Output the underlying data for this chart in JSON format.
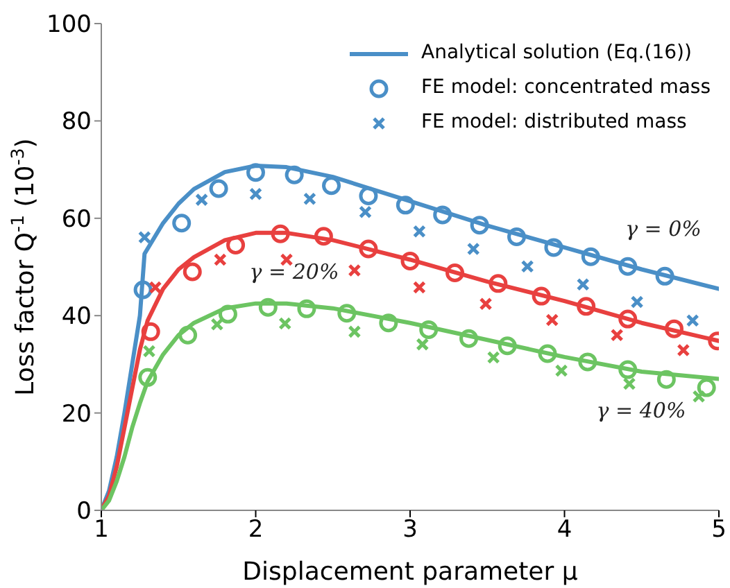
{
  "chart_data": {
    "type": "line",
    "xlabel": "Displacement parameter  μ",
    "ylabel": "Loss factor  Q$^{-1}$  (10$^{-3}$)",
    "xlim": [
      1,
      5
    ],
    "xticks": [
      1,
      2,
      3,
      4,
      5
    ],
    "ylim": [
      0,
      100
    ],
    "yticks": [
      0,
      20,
      40,
      60,
      80,
      100
    ],
    "grid": false,
    "legend": "top right",
    "series": [
      {
        "name": "Analytical solution (Eq.(16))",
        "color": "#4a8fc7",
        "marker": "none",
        "x": [
          1,
          1.05,
          1.1,
          1.15,
          1.2,
          1.25,
          1.28,
          1.4,
          1.5,
          1.6,
          1.8,
          2.0,
          2.2,
          2.5,
          3.0,
          3.5,
          4.0,
          4.5,
          5.0
        ],
        "values": [
          0,
          4,
          11,
          20,
          30,
          40,
          52.7,
          59,
          63,
          66,
          69.5,
          70.8,
          70.5,
          68.5,
          63.5,
          58.5,
          54,
          49.5,
          45.5
        ]
      },
      {
        "color": "#e8403f",
        "marker": "none",
        "x": [
          1,
          1.05,
          1.1,
          1.15,
          1.2,
          1.25,
          1.3,
          1.4,
          1.5,
          1.6,
          1.8,
          2.0,
          2.2,
          2.5,
          3.0,
          3.5,
          4.0,
          4.5,
          5.0
        ],
        "values": [
          0,
          3,
          9,
          17,
          25,
          33,
          39,
          45.5,
          49.5,
          52,
          55.5,
          57,
          57,
          55.5,
          51.5,
          47,
          43,
          38.5,
          34.8
        ]
      },
      {
        "color": "#6cc462",
        "marker": "none",
        "x": [
          1,
          1.05,
          1.1,
          1.15,
          1.2,
          1.25,
          1.3,
          1.4,
          1.5,
          1.6,
          1.8,
          2.0,
          2.2,
          2.5,
          3.0,
          3.5,
          4.0,
          4.5,
          5.0
        ],
        "values": [
          0,
          2,
          6,
          11,
          17,
          22,
          26.5,
          32,
          36,
          38.5,
          41.5,
          42.5,
          42.5,
          41.5,
          38.5,
          35,
          31.5,
          28.5,
          27
        ]
      },
      {
        "type": "scatter",
        "name": "FE model: concentrated mass",
        "color": "#4a8fc7",
        "marker": "circle",
        "x": [
          1.27,
          1.52,
          1.76,
          2.0,
          2.25,
          2.49,
          2.73,
          2.97,
          3.21,
          3.45,
          3.69,
          3.93,
          4.17,
          4.41,
          4.65
        ],
        "values": [
          45.3,
          59.0,
          66.1,
          69.4,
          68.9,
          66.7,
          64.6,
          62.7,
          60.7,
          58.6,
          56.2,
          54.0,
          52.1,
          50.1,
          48.1
        ]
      },
      {
        "type": "scatter",
        "color": "#e8403f",
        "marker": "circle",
        "x": [
          1.32,
          1.59,
          1.87,
          2.16,
          2.44,
          2.73,
          3.0,
          3.29,
          3.57,
          3.85,
          4.14,
          4.41,
          4.71,
          4.99
        ],
        "values": [
          36.7,
          49.0,
          54.5,
          56.8,
          56.3,
          53.7,
          51.2,
          48.8,
          46.6,
          44.0,
          41.9,
          39.3,
          37.3,
          34.8
        ]
      },
      {
        "type": "scatter",
        "color": "#6cc462",
        "marker": "circle",
        "x": [
          1.3,
          1.56,
          1.82,
          2.08,
          2.33,
          2.59,
          2.86,
          3.12,
          3.38,
          3.63,
          3.89,
          4.15,
          4.41,
          4.66,
          4.92
        ],
        "values": [
          27.3,
          36.0,
          40.3,
          41.7,
          41.4,
          40.5,
          38.5,
          37.1,
          35.3,
          33.8,
          32.2,
          30.5,
          28.9,
          26.9,
          25.2
        ]
      },
      {
        "type": "scatter",
        "name": "FE model: distributed mass",
        "color": "#4a8fc7",
        "marker": "cross",
        "x": [
          1.28,
          1.65,
          2.0,
          2.35,
          2.71,
          3.06,
          3.41,
          3.76,
          4.12,
          4.47,
          4.83
        ],
        "values": [
          56.1,
          63.8,
          65.0,
          64.0,
          61.3,
          57.3,
          53.7,
          50.1,
          46.4,
          42.8,
          39.0
        ]
      },
      {
        "type": "scatter",
        "color": "#e8403f",
        "marker": "cross",
        "x": [
          1.35,
          1.77,
          2.2,
          2.64,
          3.06,
          3.49,
          3.92,
          4.34,
          4.77
        ],
        "values": [
          45.8,
          51.5,
          51.5,
          49.3,
          45.8,
          42.4,
          39.1,
          36.0,
          32.9
        ]
      },
      {
        "type": "scatter",
        "color": "#6cc462",
        "marker": "cross",
        "x": [
          1.31,
          1.75,
          2.19,
          2.64,
          3.08,
          3.54,
          3.98,
          4.42,
          4.87
        ],
        "values": [
          32.7,
          38.2,
          38.4,
          36.7,
          34.1,
          31.4,
          28.7,
          26.0,
          23.4
        ]
      }
    ],
    "annotations": [
      "γ = 0%",
      "γ = 20%",
      "γ = 40%"
    ]
  }
}
